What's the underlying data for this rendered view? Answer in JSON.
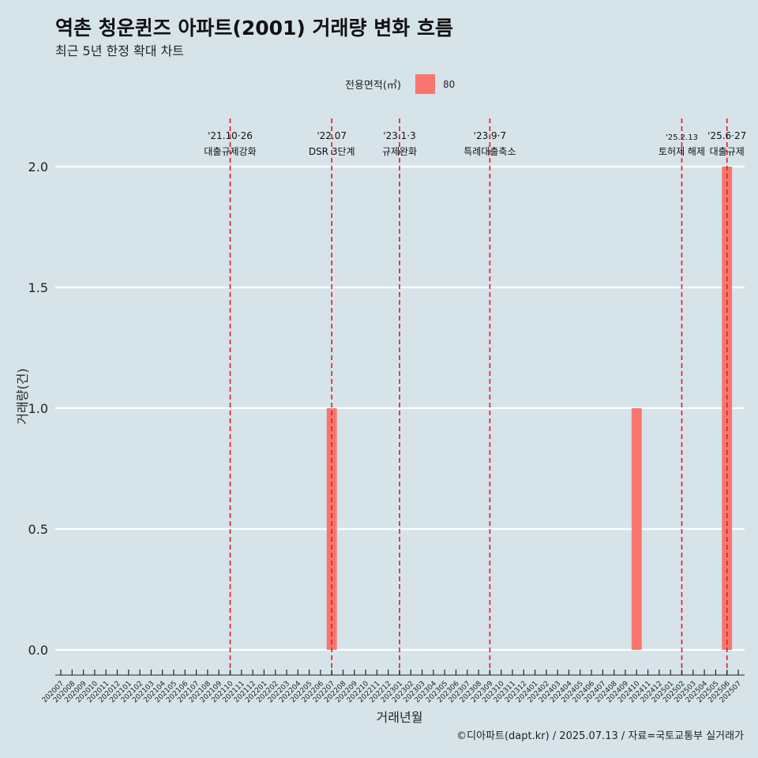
{
  "title": "역촌 청운퀸즈 아파트(2001) 거래량 변화 흐름",
  "subtitle": "최근 5년 한정 확대 차트",
  "caption": "©디아파트(dapt.kr) / 2025.07.13 / 자료=국토교통부 실거래가",
  "colors": {
    "background": "#d6e4ea",
    "bar": "#f8766d",
    "event_line": "#e31a1c",
    "grid": "#ffffff"
  },
  "chart_data": {
    "type": "bar",
    "xlabel": "거래년월",
    "ylabel": "거래량(건)",
    "ylim": [
      0,
      2.0
    ],
    "yticks": [
      0.0,
      0.5,
      1.0,
      1.5,
      2.0
    ],
    "ytick_labels": [
      "0.0",
      "0.5",
      "1.0",
      "1.5",
      "2.0"
    ],
    "legend": {
      "title": "전용면적(㎡)",
      "position": "top"
    },
    "categories": [
      "202007",
      "202008",
      "202009",
      "202010",
      "202011",
      "202012",
      "202101",
      "202102",
      "202103",
      "202104",
      "202105",
      "202106",
      "202107",
      "202108",
      "202109",
      "202110",
      "202111",
      "202112",
      "202201",
      "202202",
      "202203",
      "202204",
      "202205",
      "202206",
      "202207",
      "202208",
      "202209",
      "202210",
      "202211",
      "202212",
      "202301",
      "202302",
      "202303",
      "202304",
      "202305",
      "202306",
      "202307",
      "202308",
      "202309",
      "202310",
      "202311",
      "202312",
      "202401",
      "202402",
      "202403",
      "202404",
      "202405",
      "202406",
      "202407",
      "202408",
      "202409",
      "202410",
      "202411",
      "202412",
      "202501",
      "202502",
      "202503",
      "202504",
      "202505",
      "202506",
      "202507"
    ],
    "series": [
      {
        "name": "80",
        "values": [
          0,
          0,
          0,
          0,
          0,
          0,
          0,
          0,
          0,
          0,
          0,
          0,
          0,
          0,
          0,
          0,
          0,
          0,
          0,
          0,
          0,
          0,
          0,
          0,
          1,
          0,
          0,
          0,
          0,
          0,
          0,
          0,
          0,
          0,
          0,
          0,
          0,
          0,
          0,
          0,
          0,
          0,
          0,
          0,
          0,
          0,
          0,
          0,
          0,
          0,
          0,
          1,
          0,
          0,
          0,
          0,
          0,
          0,
          0,
          2,
          0
        ]
      }
    ],
    "annotations": [
      {
        "month": "202110",
        "date": "'21.10·26",
        "label": "대출규제강화"
      },
      {
        "month": "202207",
        "date": "'22.07",
        "label": "DSR 3단계"
      },
      {
        "month": "202301",
        "date": "'23.1·3",
        "label": "규제완화"
      },
      {
        "month": "202309",
        "date": "'23.9·7",
        "label": "특례대출축소"
      },
      {
        "month": "202502",
        "date": "'25.2.13",
        "label": "토허제 해제"
      },
      {
        "month": "202506",
        "date": "'25.6·27",
        "label": "대출규제"
      }
    ]
  }
}
